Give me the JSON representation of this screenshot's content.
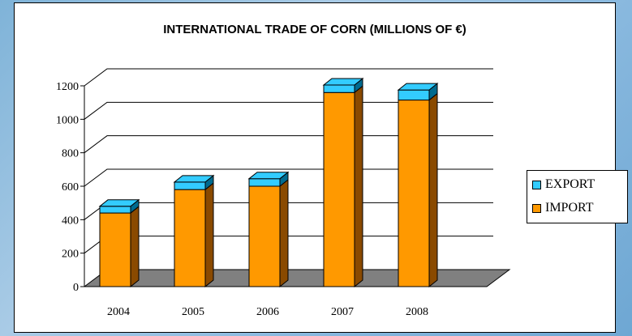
{
  "chart_data": {
    "type": "bar",
    "stacked": true,
    "three_d": true,
    "title": "INTERNATIONAL TRADE OF CORN (MILLIONS OF €)",
    "xlabel": "",
    "ylabel": "",
    "categories": [
      "2004",
      "2005",
      "2006",
      "2007",
      "2008"
    ],
    "series": [
      {
        "name": "IMPORT",
        "values": [
          440,
          580,
          600,
          1160,
          1115
        ],
        "color": "#ff9900"
      },
      {
        "name": "EXPORT",
        "values": [
          40,
          45,
          45,
          45,
          60
        ],
        "color": "#33ccff"
      }
    ],
    "ylim": [
      0,
      1200
    ],
    "yticks": [
      "0",
      "200",
      "400",
      "600",
      "800",
      "1000",
      "1200"
    ],
    "grid": true,
    "legend_position": "right",
    "floor_color": "#808080"
  }
}
